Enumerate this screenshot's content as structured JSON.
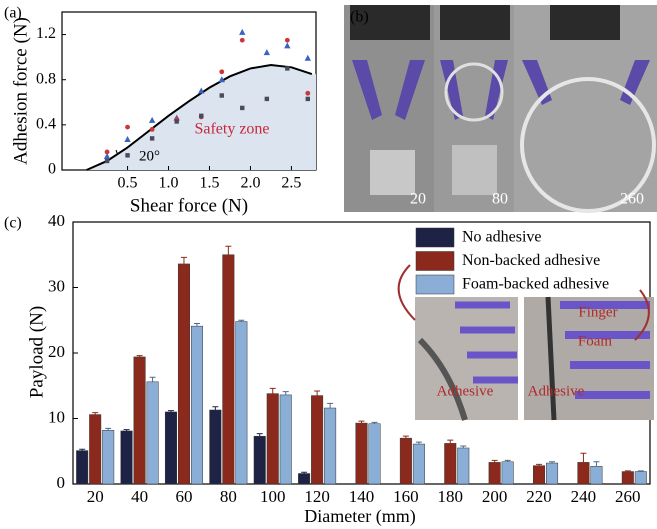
{
  "chart_data": [
    {
      "type": "scatter",
      "label": "(a)",
      "xlabel": "Shear force (N)",
      "ylabel": "Adhesion force (N)",
      "xlim": [
        -0.3,
        2.8
      ],
      "ylim": [
        0,
        1.4
      ],
      "xticks": [
        0.5,
        {
          "value": 1.0,
          "label": "1.0"
        },
        1.5,
        {
          "value": 2.0,
          "label": "2.0"
        },
        2.5
      ],
      "yticks": [
        0,
        0.4,
        0.8,
        1.2
      ],
      "annotations": [
        "Safety zone",
        "20°"
      ],
      "boundary": {
        "x": [
          0,
          0.25,
          0.5,
          0.75,
          1.0,
          1.25,
          1.5,
          1.75,
          2.0,
          2.25,
          2.5,
          2.75
        ],
        "y": [
          0,
          0.08,
          0.2,
          0.34,
          0.48,
          0.61,
          0.73,
          0.83,
          0.9,
          0.93,
          0.91,
          0.85
        ],
        "color": "#000000",
        "fill": "#dbe4ef"
      },
      "series": [
        {
          "marker": "triangle",
          "color": "#3a62c2",
          "x": [
            0.25,
            0.5,
            0.8,
            1.1,
            1.4,
            1.65,
            1.9,
            2.2,
            2.45,
            2.7
          ],
          "values": [
            0.12,
            0.27,
            0.44,
            0.46,
            0.7,
            0.8,
            1.22,
            1.04,
            1.1,
            0.99
          ]
        },
        {
          "marker": "circle",
          "color": "#c8383c",
          "x": [
            0.25,
            0.5,
            0.8,
            1.1,
            1.4,
            1.65,
            1.9,
            2.45,
            2.7
          ],
          "values": [
            0.16,
            0.38,
            0.36,
            0.45,
            0.47,
            0.87,
            1.15,
            1.15,
            0.68
          ]
        },
        {
          "marker": "square",
          "color": "#4a4a5a",
          "x": [
            0.25,
            0.5,
            0.8,
            1.1,
            1.4,
            1.65,
            1.9,
            2.2,
            2.45,
            2.7
          ],
          "values": [
            0.08,
            0.13,
            0.28,
            0.43,
            0.48,
            0.66,
            0.55,
            0.63,
            0.9,
            0.63
          ]
        }
      ]
    },
    {
      "type": "bar",
      "label": "(c)",
      "xlabel": "Diameter (mm)",
      "ylabel": "Payload (N)",
      "categories": [
        "20",
        "40",
        "60",
        "80",
        "100",
        "120",
        "140",
        "160",
        "180",
        "200",
        "220",
        "240",
        "260"
      ],
      "ylim": [
        0,
        40
      ],
      "yticks": [
        0,
        10,
        20,
        30,
        40
      ],
      "legend": "upper right",
      "series": [
        {
          "name": "No adhesive",
          "color": "#1e2245",
          "values": [
            5.1,
            8.1,
            11,
            11.3,
            7.3,
            1.6,
            null,
            null,
            null,
            null,
            null,
            null,
            null
          ],
          "errors": [
            0.2,
            0.2,
            0.2,
            0.5,
            0.4,
            0.2,
            null,
            null,
            null,
            null,
            null,
            null,
            null
          ]
        },
        {
          "name": "Non-backed adhesive",
          "color": "#8b2a1c",
          "values": [
            10.6,
            19.4,
            33.6,
            35,
            13.8,
            13.5,
            9.3,
            7,
            6.2,
            3.3,
            2.8,
            3.3,
            1.9
          ],
          "errors": [
            0.3,
            0.2,
            1.0,
            1.3,
            0.8,
            0.7,
            0.3,
            0.3,
            0.5,
            0.3,
            0.2,
            1.4,
            0.1
          ]
        },
        {
          "name": "Foam-backed adhesive",
          "color": "#8aaed6",
          "values": [
            8.2,
            15.6,
            24.1,
            24.8,
            13.6,
            11.6,
            9.2,
            6.1,
            5.5,
            3.4,
            3.2,
            2.7,
            1.9
          ],
          "errors": [
            0.3,
            0.7,
            0.4,
            0.2,
            0.5,
            0.7,
            0.2,
            0.3,
            0.3,
            0.2,
            0.2,
            0.7,
            0.1
          ]
        }
      ]
    }
  ],
  "photos": {
    "label": "(b)",
    "diameters": [
      "20",
      "80",
      "260"
    ],
    "insets": [
      "Adhesive",
      "Adhesive",
      "Finger",
      "Foam"
    ]
  }
}
